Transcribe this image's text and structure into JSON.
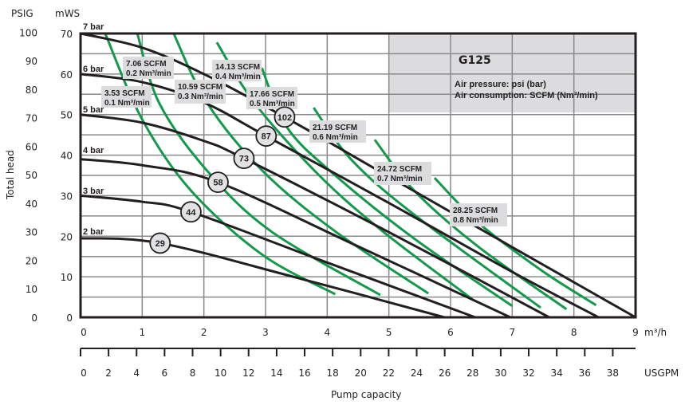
{
  "chart_data": {
    "type": "line",
    "title": "G125",
    "legend_notes": [
      "Air pressure: psi (bar)",
      "Air consumption: SCFM (Nm³/min)"
    ],
    "xlabel": "Pump capacity",
    "ylabel": "Total head",
    "x_unit_primary": "m³/h",
    "x_unit_secondary": "USGPM",
    "y_unit_left": "PSIG",
    "y_unit_right": "mWS",
    "xlim": [
      0,
      9
    ],
    "ylim": [
      0,
      70
    ],
    "x_ticks": [
      "0",
      "1",
      "2",
      "3",
      "4",
      "5",
      "6",
      "7",
      "8",
      "9"
    ],
    "usgpm_ticks": [
      "0",
      "2",
      "4",
      "6",
      "8",
      "10",
      "12",
      "14",
      "16",
      "18",
      "20",
      "22",
      "24",
      "26",
      "28",
      "30",
      "32",
      "34",
      "36",
      "38"
    ],
    "mws_ticks": [
      "70",
      "60",
      "50",
      "40",
      "30",
      "20",
      "10",
      "0"
    ],
    "psig_ticks": [
      "100",
      "90",
      "80",
      "70",
      "60",
      "50",
      "40",
      "30",
      "20",
      "10",
      "0"
    ],
    "grid": true,
    "colors": {
      "pressure_curve": "#231f20",
      "air_curve": "#13994a",
      "panel": "#dcdcde",
      "marker": "#e2e2e4"
    },
    "pressure_curves": [
      {
        "name": "7 bar",
        "points": [
          [
            0,
            70
          ],
          [
            1,
            66.5
          ],
          [
            2,
            60
          ],
          [
            3.31,
            49.4
          ],
          [
            5,
            34.7
          ],
          [
            7,
            17.3
          ],
          [
            9,
            0
          ]
        ]
      },
      {
        "name": "6 bar",
        "points": [
          [
            0,
            60
          ],
          [
            1,
            58
          ],
          [
            2,
            53
          ],
          [
            3.01,
            44.7
          ],
          [
            5,
            28.2
          ],
          [
            7,
            11.2
          ],
          [
            8.4,
            0
          ]
        ]
      },
      {
        "name": "5 bar",
        "points": [
          [
            0,
            50
          ],
          [
            1,
            48
          ],
          [
            2,
            43.5
          ],
          [
            2.65,
            39.2
          ],
          [
            5,
            21
          ],
          [
            7.6,
            0
          ]
        ]
      },
      {
        "name": "4 bar",
        "points": [
          [
            0,
            39
          ],
          [
            1,
            37.5
          ],
          [
            2.23,
            33.3
          ],
          [
            4.5,
            17.5
          ],
          [
            6.97,
            0
          ]
        ]
      },
      {
        "name": "3 bar",
        "points": [
          [
            0,
            30
          ],
          [
            1,
            28.5
          ],
          [
            1.79,
            26
          ],
          [
            4,
            13.5
          ],
          [
            6.4,
            0
          ]
        ]
      },
      {
        "name": "2 bar",
        "points": [
          [
            0,
            19.5
          ],
          [
            1.29,
            18.3
          ],
          [
            3.5,
            9.8
          ],
          [
            5.9,
            0
          ]
        ]
      }
    ],
    "air_curves": [
      {
        "scfm": "3.53 SCFM",
        "nm3": "0.1 Nm³/min",
        "points": [
          [
            0.4,
            70
          ],
          [
            1.0,
            48.8
          ],
          [
            1.8,
            31.1
          ],
          [
            2.96,
            15.3
          ],
          [
            4.13,
            5.7
          ]
        ]
      },
      {
        "scfm": "7.06 SCFM",
        "nm3": "0.2 Nm³/min",
        "points": [
          [
            0.92,
            70
          ],
          [
            1.28,
            52.7
          ],
          [
            2.06,
            36
          ],
          [
            3.09,
            21.2
          ],
          [
            4.86,
            5.5
          ]
        ]
      },
      {
        "scfm": "10.59 SCFM",
        "nm3": "0.3 Nm³/min",
        "points": [
          [
            1.51,
            70
          ],
          [
            2.06,
            52.7
          ],
          [
            2.96,
            36
          ],
          [
            4.13,
            21.2
          ],
          [
            5.64,
            5.9
          ]
        ]
      },
      {
        "scfm": "14.13 SCFM",
        "nm3": "0.4 Nm³/min",
        "points": [
          [
            2.21,
            67.8
          ],
          [
            2.83,
            52.7
          ],
          [
            3.87,
            35
          ],
          [
            4.9,
            21.2
          ],
          [
            6.35,
            4.5
          ]
        ]
      },
      {
        "scfm": "17.66 SCFM",
        "nm3": "0.5 Nm³/min",
        "points": [
          [
            2.94,
            61.5
          ],
          [
            3.35,
            46.8
          ],
          [
            4.13,
            35
          ],
          [
            5.42,
            19.3
          ],
          [
            7.0,
            2.8
          ]
        ]
      },
      {
        "scfm": "21.19 SCFM",
        "nm3": "0.6 Nm³/min",
        "points": [
          [
            3.78,
            51.7
          ],
          [
            4.39,
            38.9
          ],
          [
            5.42,
            25.2
          ],
          [
            7.46,
            2.4
          ]
        ]
      },
      {
        "scfm": "24.72 SCFM",
        "nm3": "0.7 Nm³/min",
        "points": [
          [
            4.77,
            43.8
          ],
          [
            5.42,
            31.1
          ],
          [
            6.46,
            17.3
          ],
          [
            7.88,
            2
          ]
        ]
      },
      {
        "scfm": "28.25 SCFM",
        "nm3": "0.8 Nm³/min",
        "points": [
          [
            5.74,
            34.4
          ],
          [
            6.46,
            23.2
          ],
          [
            7.49,
            11.4
          ],
          [
            8.36,
            3
          ]
        ]
      }
    ],
    "markers": [
      {
        "label": "29",
        "x": 1.29,
        "y": 18.3
      },
      {
        "label": "44",
        "x": 1.79,
        "y": 26.0
      },
      {
        "label": "58",
        "x": 2.23,
        "y": 33.3
      },
      {
        "label": "73",
        "x": 2.65,
        "y": 39.2
      },
      {
        "label": "87",
        "x": 3.01,
        "y": 44.7
      },
      {
        "label": "102",
        "x": 3.31,
        "y": 49.4
      }
    ]
  }
}
